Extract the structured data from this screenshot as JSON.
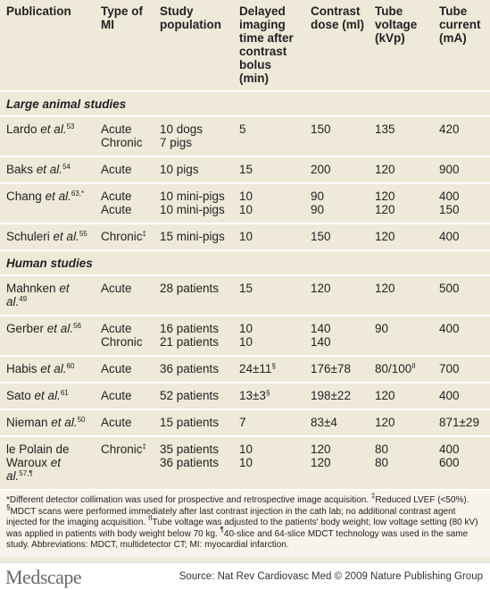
{
  "table": {
    "columns": [
      "Publication",
      "Type of MI",
      "Study population",
      "Delayed imaging time after contrast bolus (min)",
      "Contrast dose (ml)",
      "Tube voltage (kVp)",
      "Tube current (mA)"
    ],
    "sections": [
      {
        "title": "Large animal studies",
        "rows": [
          {
            "publication": {
              "author": "Lardo",
              "etal": "et al.",
              "ref": "53"
            },
            "cells": [
              [
                "Acute",
                "Chronic"
              ],
              [
                "10 dogs",
                "7 pigs"
              ],
              [
                "5"
              ],
              [
                "150"
              ],
              [
                "135"
              ],
              [
                "420"
              ]
            ]
          },
          {
            "publication": {
              "author": "Baks",
              "etal": "et al.",
              "ref": "54"
            },
            "cells": [
              [
                "Acute"
              ],
              [
                "10 pigs"
              ],
              [
                "15"
              ],
              [
                "200"
              ],
              [
                "120"
              ],
              [
                "900"
              ]
            ]
          },
          {
            "publication": {
              "author": "Chang",
              "etal": "et al.",
              "ref": "63,*"
            },
            "cells": [
              [
                "Acute",
                "Acute"
              ],
              [
                "10 mini-pigs",
                "10 mini-pigs"
              ],
              [
                "10",
                "10"
              ],
              [
                "90",
                "90"
              ],
              [
                "120",
                "120"
              ],
              [
                "400",
                "150"
              ]
            ]
          },
          {
            "publication": {
              "author": "Schuleri",
              "etal": "et al.",
              "ref": "55"
            },
            "cells": [
              [
                {
                  "text": "Chronic",
                  "sup": "‡"
                }
              ],
              [
                "15 mini-pigs"
              ],
              [
                "10"
              ],
              [
                "150"
              ],
              [
                "120"
              ],
              [
                "400"
              ]
            ]
          }
        ]
      },
      {
        "title": "Human studies",
        "rows": [
          {
            "publication": {
              "author": "Mahnken",
              "etal": "et al.",
              "ref": "49"
            },
            "cells": [
              [
                "Acute"
              ],
              [
                "28 patients"
              ],
              [
                "15"
              ],
              [
                "120"
              ],
              [
                "120"
              ],
              [
                "500"
              ]
            ]
          },
          {
            "publication": {
              "author": "Gerber",
              "etal": "et al.",
              "ref": "56"
            },
            "cells": [
              [
                "Acute",
                "Chronic"
              ],
              [
                "16 patients",
                "21 patients"
              ],
              [
                "10",
                "10"
              ],
              [
                "140",
                "140"
              ],
              [
                "90"
              ],
              [
                "400"
              ]
            ]
          },
          {
            "publication": {
              "author": "Habis",
              "etal": "et al.",
              "ref": "60"
            },
            "cells": [
              [
                "Acute"
              ],
              [
                "36 patients"
              ],
              [
                {
                  "text": "24±11",
                  "sup": "§"
                }
              ],
              [
                "176±78"
              ],
              [
                {
                  "text": "80/100",
                  "sup": "II"
                }
              ],
              [
                "700"
              ]
            ]
          },
          {
            "publication": {
              "author": "Sato",
              "etal": "et al.",
              "ref": "61"
            },
            "cells": [
              [
                "Acute"
              ],
              [
                "52 patients"
              ],
              [
                {
                  "text": "13±3",
                  "sup": "§"
                }
              ],
              [
                "198±22"
              ],
              [
                "120"
              ],
              [
                "400"
              ]
            ]
          },
          {
            "publication": {
              "author": "Nieman",
              "etal": "et al.",
              "ref": "50"
            },
            "cells": [
              [
                "Acute"
              ],
              [
                "15 patients"
              ],
              [
                "7"
              ],
              [
                "83±4"
              ],
              [
                "120"
              ],
              [
                "871±29"
              ]
            ]
          },
          {
            "publication": {
              "author": "le Polain de Waroux",
              "etal": "et al.",
              "ref": "57,¶"
            },
            "cells": [
              [
                {
                  "text": "Chronic",
                  "sup": "‡"
                }
              ],
              [
                "35 patients",
                "36 patients"
              ],
              [
                "10",
                "10"
              ],
              [
                "120",
                "120"
              ],
              [
                "80",
                "80"
              ],
              [
                "400",
                "600"
              ]
            ]
          }
        ]
      }
    ]
  },
  "footnote": [
    {
      "text": "*Different detector collimation was used for prospective and retrospective image acquisition. "
    },
    {
      "sup": "‡"
    },
    {
      "text": "Reduced LVEF (<50%). "
    },
    {
      "sup": "§"
    },
    {
      "text": "MDCT scans were performed immediately after last contrast injection in the cath lab; no additional contrast agent injected for the imaging acquisition. "
    },
    {
      "sup": "II"
    },
    {
      "text": "Tube voltage was adjusted to the patients' body weight; low voltage setting (80 kV) was applied in patients with body weight below 70 kg. "
    },
    {
      "sup": "¶"
    },
    {
      "text": "40-slice and 64-slice MDCT technology was used in the same study. Abbreviations: MDCT, multidetector CT; MI: myocardial infarction."
    }
  ],
  "footer": {
    "logo": "Medscape",
    "source": "Source: Nat Rev Cardiovasc Med © 2009 Nature Publishing Group"
  }
}
